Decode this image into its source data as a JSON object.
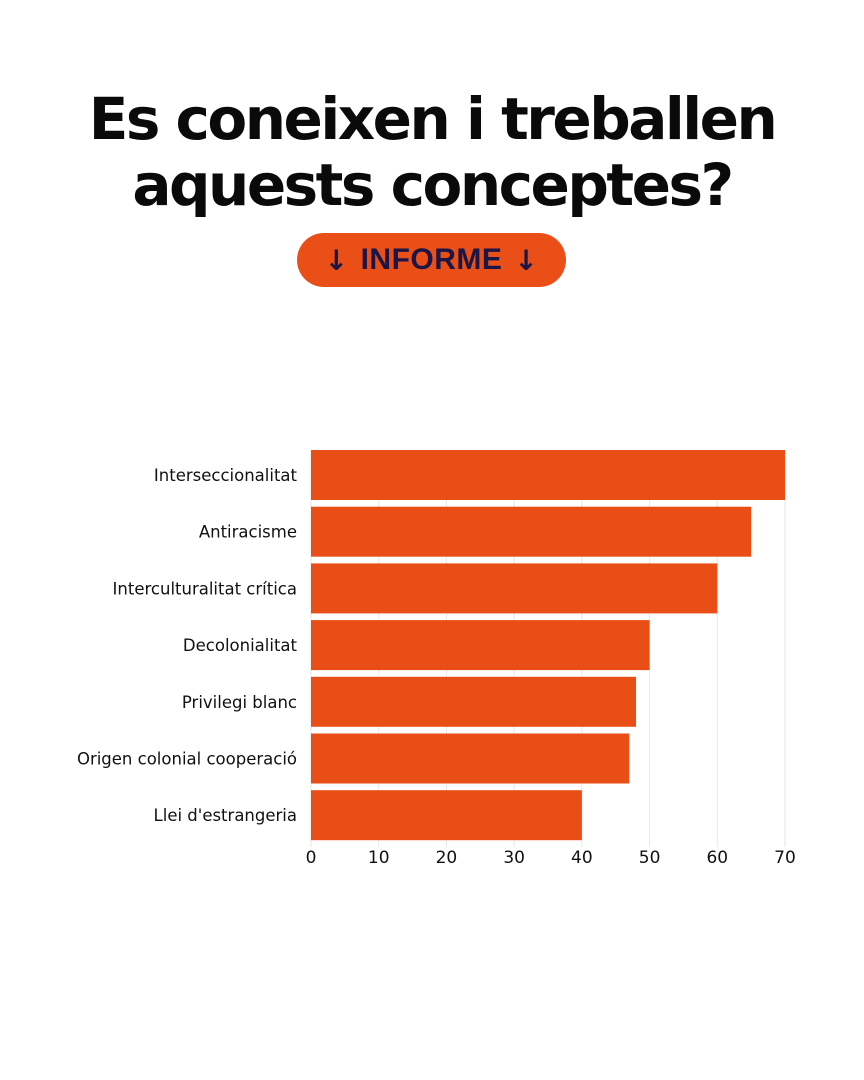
{
  "title": {
    "line1": "Es coneixen i treballen",
    "line2": "aquests conceptes?"
  },
  "report_button": {
    "arrow_left": "↓",
    "label": "INFORME",
    "arrow_right": "↓"
  },
  "colors": {
    "accent": "#e94f16",
    "bar": "#e84e15",
    "button_text": "#1c1646",
    "title_text": "#0a0a0a"
  },
  "chart_data": {
    "type": "bar",
    "orientation": "horizontal",
    "title": "",
    "xlabel": "",
    "ylabel": "",
    "categories": [
      "Interseccionalitat",
      "Antiracisme",
      "Interculturalitat crítica",
      "Decolonialitat",
      "Privilegi blanc",
      "Origen colonial cooperació",
      "Llei d'estrangeria"
    ],
    "values": [
      70,
      65,
      60,
      50,
      48,
      47,
      40
    ],
    "xlim": [
      0,
      70
    ],
    "xticks": [
      0,
      10,
      20,
      30,
      40,
      50,
      60,
      70
    ],
    "grid": true,
    "legend": "none"
  }
}
